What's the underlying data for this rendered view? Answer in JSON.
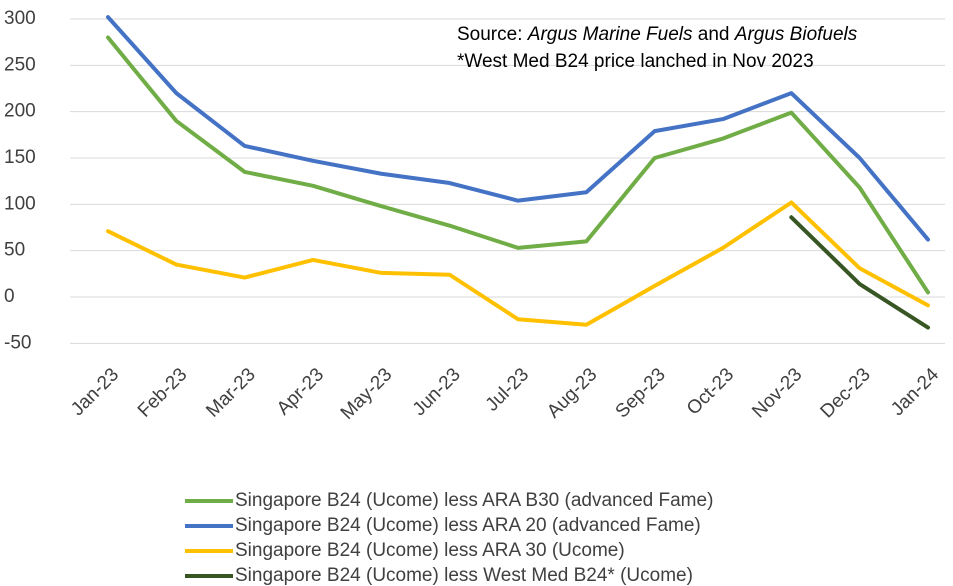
{
  "chart_data": {
    "type": "line",
    "annotations": [
      [
        "Source: ",
        "Argus Marine Fuels",
        " and ",
        "Argus Biofuels"
      ],
      [
        "*West Med B24 price lanched in Nov 2023"
      ]
    ],
    "categories": [
      "Jan-23",
      "Feb-23",
      "Mar-23",
      "Apr-23",
      "May-23",
      "Jun-23",
      "Jul-23",
      "Aug-23",
      "Sep-23",
      "Oct-23",
      "Nov-23",
      "Dec-23",
      "Jan-24"
    ],
    "series": [
      {
        "name": "Singapore B24 (Ucome) less ARA B30 (advanced Fame)",
        "color": "#70ad47",
        "values": [
          280,
          190,
          135,
          120,
          98,
          77,
          53,
          60,
          150,
          171,
          199,
          118,
          5
        ]
      },
      {
        "name": "Singapore B24 (Ucome) less ARA 20 (advanced Fame)",
        "color": "#4472c4",
        "values": [
          302,
          220,
          163,
          147,
          133,
          123,
          104,
          113,
          179,
          192,
          220,
          150,
          62
        ]
      },
      {
        "name": "Singapore B24 (Ucome) less ARA 30 (Ucome)",
        "color": "#ffc000",
        "values": [
          71,
          35,
          21,
          40,
          26,
          24,
          -24,
          -30,
          12,
          53,
          102,
          31,
          -9
        ]
      },
      {
        "name": "Singapore B24 (Ucome) less West Med B24* (Ucome)",
        "color": "#375623",
        "values": [
          null,
          null,
          null,
          null,
          null,
          null,
          null,
          null,
          null,
          null,
          86,
          14,
          -33
        ]
      }
    ],
    "ylim": [
      -50,
      300
    ],
    "yticks": [
      -50,
      0,
      50,
      100,
      150,
      200,
      250,
      300
    ],
    "grid": true,
    "legend": "bottom"
  }
}
